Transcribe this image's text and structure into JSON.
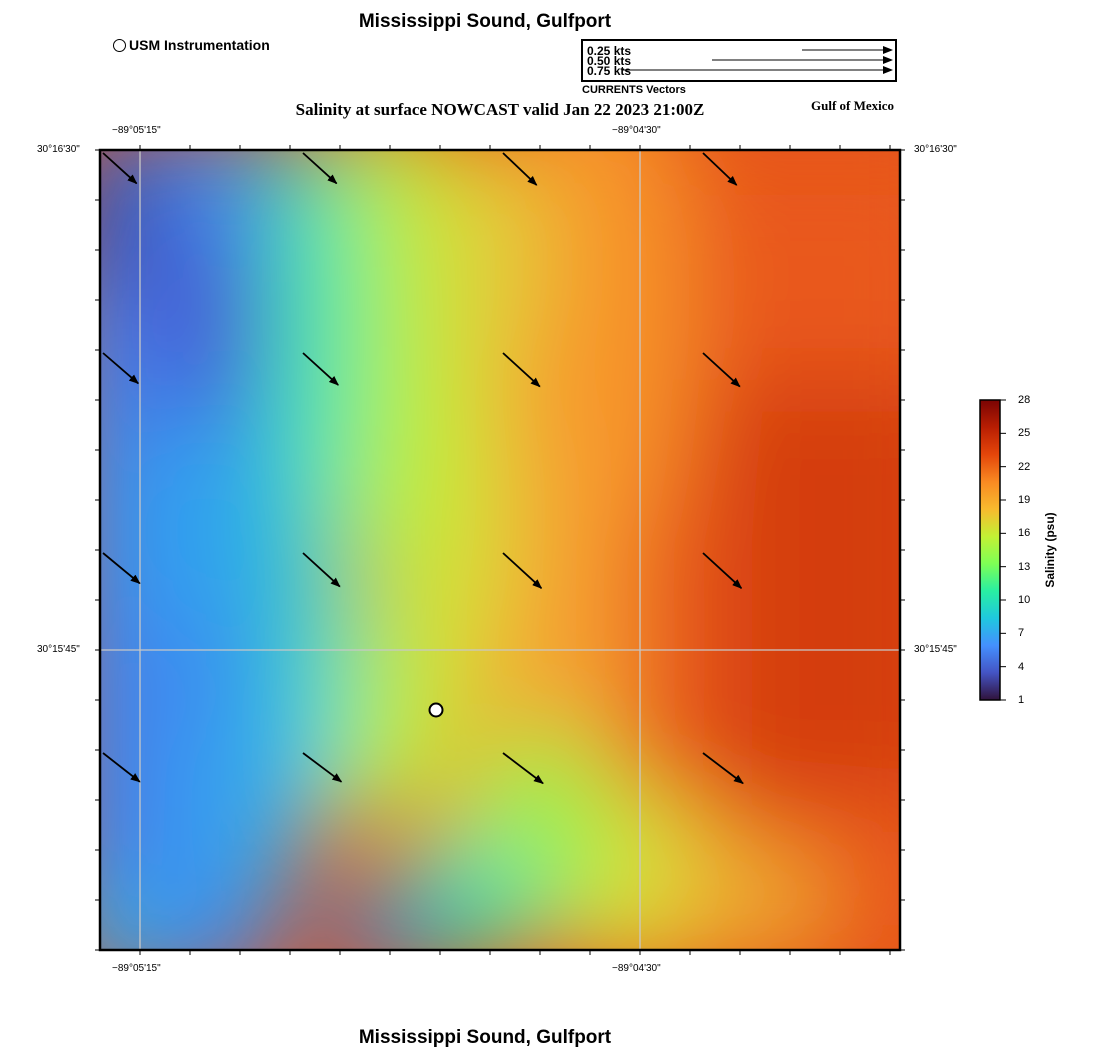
{
  "header": {
    "title": "Mississippi Sound, Gulfport",
    "subtitle": "Salinity at surface NOWCAST valid Jan 22 2023 21:00Z",
    "region_label": "Gulf of Mexico"
  },
  "footer": {
    "title": "Mississippi Sound, Gulfport"
  },
  "legend": {
    "station_label": "USM Instrumentation",
    "vector_scale": [
      {
        "label": "0.25 kts",
        "speed": 0.25
      },
      {
        "label": "0.50 kts",
        "speed": 0.5
      },
      {
        "label": "0.75 kts",
        "speed": 0.75
      }
    ],
    "vector_caption": "CURRENTS Vectors"
  },
  "axes": {
    "lon_ticks": [
      "−89°05'15\"",
      "−89°04'30\""
    ],
    "lat_ticks": [
      "30°16'30\"",
      "30°15'45\""
    ]
  },
  "colorbar": {
    "title": "Salinity (psu)",
    "ticks": [
      "28",
      "25",
      "22",
      "19",
      "16",
      "13",
      "10",
      "7",
      "4",
      "1"
    ],
    "min": 1,
    "max": 28,
    "colors": [
      "#30123b",
      "#4454c4",
      "#4490fe",
      "#1fc8de",
      "#29efa2",
      "#7eff55",
      "#c3f134",
      "#f8ba2e",
      "#f98a22",
      "#e4460a",
      "#b81e03",
      "#7a0403"
    ]
  },
  "map_data": {
    "station": {
      "name": "USM Instrumentation"
    },
    "current_vectors": [
      {
        "u": 0.21,
        "v": -0.19
      },
      {
        "u": 0.21,
        "v": -0.19
      },
      {
        "u": 0.21,
        "v": -0.2
      },
      {
        "u": 0.21,
        "v": -0.2
      },
      {
        "u": 0.22,
        "v": -0.19
      },
      {
        "u": 0.22,
        "v": -0.2
      },
      {
        "u": 0.23,
        "v": -0.21
      },
      {
        "u": 0.23,
        "v": -0.21
      },
      {
        "u": 0.23,
        "v": -0.19
      },
      {
        "u": 0.23,
        "v": -0.21
      },
      {
        "u": 0.24,
        "v": -0.22
      },
      {
        "u": 0.24,
        "v": -0.22
      },
      {
        "u": 0.23,
        "v": -0.18
      },
      {
        "u": 0.24,
        "v": -0.18
      },
      {
        "u": 0.25,
        "v": -0.19
      },
      {
        "u": 0.25,
        "v": -0.19
      }
    ]
  }
}
